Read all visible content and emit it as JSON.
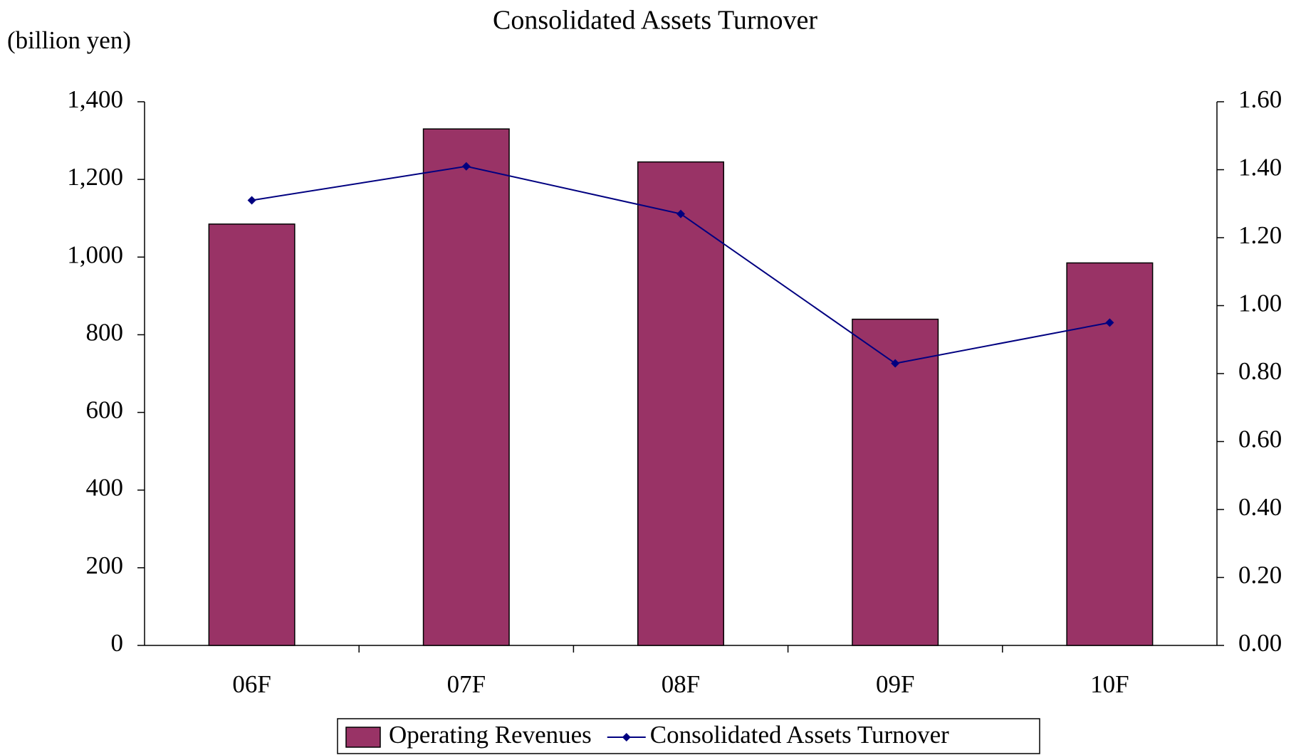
{
  "chart_data": {
    "type": "bar",
    "title": "Consolidated Assets Turnover",
    "y_label": "(billion yen)",
    "categories": [
      "06F",
      "07F",
      "08F",
      "09F",
      "10F"
    ],
    "series": [
      {
        "name": "Operating Revenues",
        "type": "bar",
        "color": "#993366",
        "values": [
          1085,
          1330,
          1245,
          840,
          985
        ]
      },
      {
        "name": "Consolidated Assets Turnover",
        "type": "line",
        "axis": "y2",
        "color": "#000080",
        "values": [
          1.31,
          1.41,
          1.27,
          0.83,
          0.95
        ]
      }
    ],
    "ylim": [
      0,
      1400
    ],
    "yticks": [
      0,
      200,
      400,
      600,
      800,
      {
        "value": 1000,
        "label": "1,000"
      },
      {
        "value": 1200,
        "label": "1,200"
      },
      {
        "value": 1400,
        "label": "1,400"
      }
    ],
    "y2lim": [
      0,
      1.6
    ],
    "y2ticks": [
      {
        "value": 0,
        "label": "0.00"
      },
      {
        "value": 0.2,
        "label": "0.20"
      },
      {
        "value": 0.4,
        "label": "0.40"
      },
      {
        "value": 0.6,
        "label": "0.60"
      },
      {
        "value": 0.8,
        "label": "0.80"
      },
      {
        "value": 1,
        "label": "1.00"
      },
      {
        "value": 1.2,
        "label": "1.20"
      },
      {
        "value": 1.4,
        "label": "1.40"
      },
      {
        "value": 1.6,
        "label": "1.60"
      }
    ],
    "grid": false,
    "legend": "bottom"
  }
}
